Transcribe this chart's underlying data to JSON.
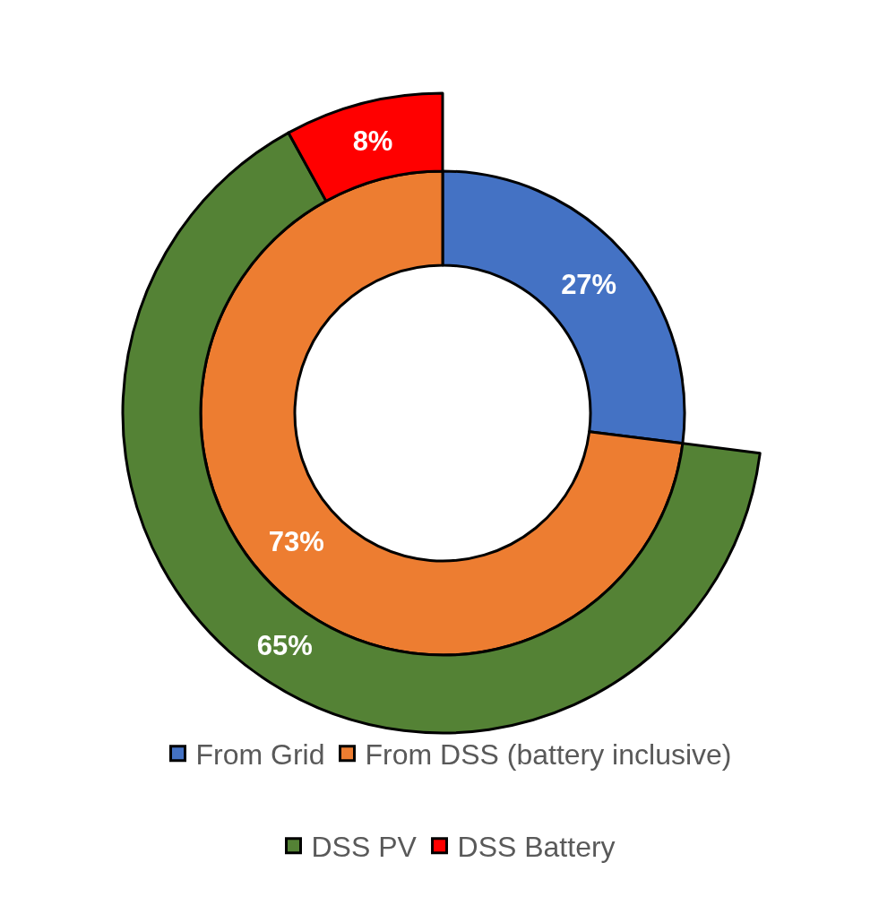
{
  "chart_data": {
    "type": "donut",
    "categories": [
      "From Grid",
      "From DSS (battery inclusive)",
      "DSS PV",
      "DSS Battery"
    ],
    "colors": [
      "#4472c4",
      "#ed7d31",
      "#548235",
      "#ff0000"
    ],
    "series": [
      {
        "values": [
          27,
          73,
          null,
          null
        ],
        "value_labels": [
          "27%",
          "73%",
          null,
          null
        ]
      },
      {
        "values": [
          null,
          null,
          65,
          8
        ],
        "value_labels": [
          null,
          null,
          "65%",
          "8%"
        ]
      }
    ],
    "legend": "bottom"
  }
}
